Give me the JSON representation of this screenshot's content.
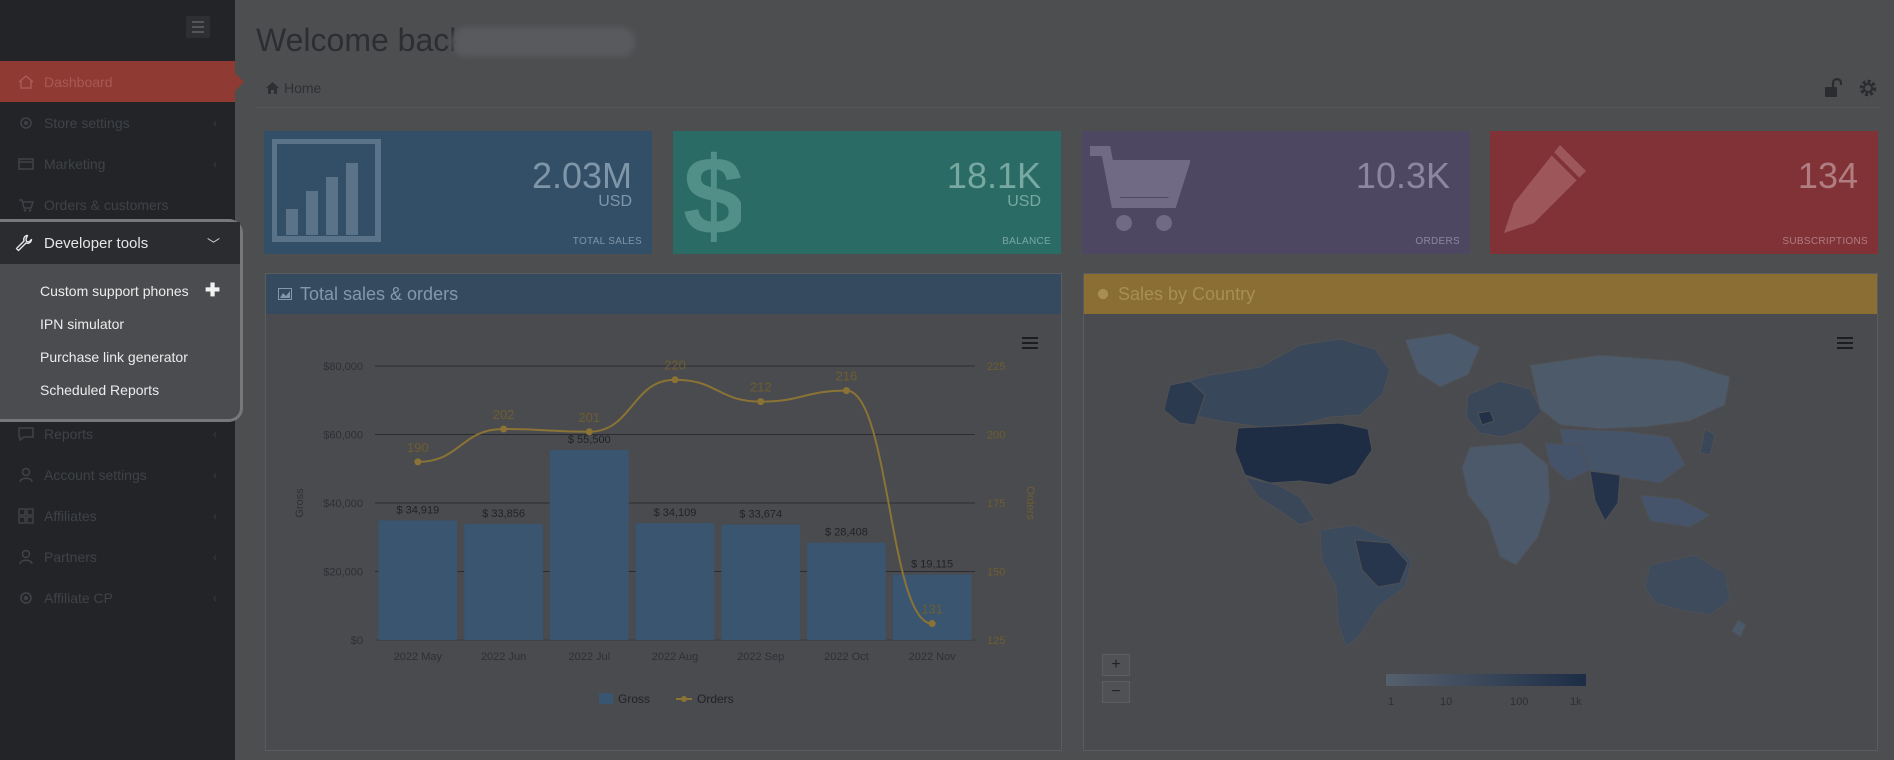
{
  "sidebar": {
    "items": [
      {
        "label": "Dashboard",
        "icon": "home-icon",
        "active": true
      },
      {
        "label": "Store settings",
        "icon": "gear-icon"
      },
      {
        "label": "Marketing",
        "icon": "card-icon"
      },
      {
        "label": "Orders & customers",
        "icon": "cart-icon"
      },
      {
        "label": "Developer tools",
        "icon": "wrench-icon",
        "expanded": true
      },
      {
        "label": "Reports",
        "icon": "reports-icon"
      },
      {
        "label": "Account settings",
        "icon": "user-icon"
      },
      {
        "label": "Affiliates",
        "icon": "grid-icon"
      },
      {
        "label": "Partners",
        "icon": "partners-icon"
      },
      {
        "label": "Affiliate CP",
        "icon": "gear-icon"
      }
    ],
    "dev_subitems": [
      {
        "label": "Custom support phones"
      },
      {
        "label": "IPN simulator"
      },
      {
        "label": "Purchase link generator"
      },
      {
        "label": "Scheduled Reports"
      }
    ],
    "add_symbol": "✚"
  },
  "header": {
    "welcome": "Welcome back,",
    "breadcrumb_home": "Home"
  },
  "cards": [
    {
      "value": "2.03M",
      "unit": "USD",
      "label": "TOTAL SALES",
      "color": "#334f68"
    },
    {
      "value": "18.1K",
      "unit": "USD",
      "label": "BALANCE",
      "color": "#2a6b65"
    },
    {
      "value": "10.3K",
      "unit": "",
      "label": "ORDERS",
      "color": "#4d4761"
    },
    {
      "value": "134",
      "unit": "",
      "label": "SUBSCRIPTIONS",
      "color": "#803237"
    }
  ],
  "panels": {
    "sales_title": "Total sales & orders",
    "country_title": "Sales by Country"
  },
  "chart_data": {
    "type": "bar",
    "categories": [
      "2022 May",
      "2022 Jun",
      "2022 Jul",
      "2022 Aug",
      "2022 Sep",
      "2022 Oct",
      "2022 Nov"
    ],
    "series": [
      {
        "name": "Gross",
        "type": "bar",
        "values": [
          34919,
          33856,
          55500,
          34109,
          33674,
          28408,
          19115
        ],
        "labels": [
          "$ 34,919",
          "$ 33,856",
          "$ 55,500",
          "$ 34,109",
          "$ 33,674",
          "$ 28,408",
          "$ 19,115"
        ],
        "color": "#3a5570"
      },
      {
        "name": "Orders",
        "type": "line",
        "values": [
          190,
          202,
          201,
          220,
          212,
          216,
          131
        ],
        "color": "#8a7334"
      }
    ],
    "y_left": {
      "label": "Gross",
      "range": [
        0,
        80000
      ],
      "ticks": [
        "$0",
        "$20,000",
        "$40,000",
        "$60,000",
        "$80,000"
      ]
    },
    "y_right": {
      "label": "Orders",
      "range": [
        125,
        225
      ],
      "ticks": [
        "125",
        "150",
        "175",
        "200",
        "225"
      ]
    },
    "legend": [
      "Gross",
      "Orders"
    ],
    "legend_position": "bottom"
  },
  "map": {
    "legend_ticks": [
      "1",
      "10",
      "100",
      "1k"
    ],
    "zoom_in": "+",
    "zoom_out": "−"
  }
}
